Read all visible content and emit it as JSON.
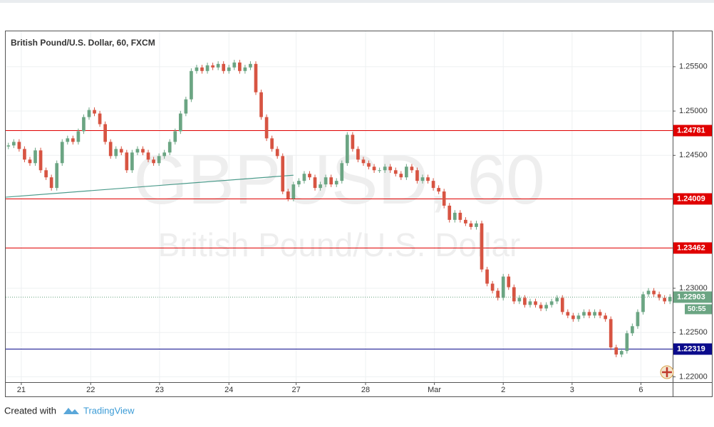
{
  "chart_data": {
    "type": "candlestick",
    "title": "British Pound/U.S. Dollar, 60, FXCM",
    "watermark": "GBPUSD, 60",
    "watermark_subtitle": "British Pound/U.S. Dollar",
    "countdown": "50:55",
    "up_color": "#6ba583",
    "down_color": "#d75442",
    "open": [
      1.246,
      1.24612,
      1.24652,
      1.24572,
      1.24452,
      1.24412,
      1.24556,
      1.24332,
      1.24252,
      1.24132,
      1.24412,
      1.24652,
      1.24692,
      1.24652,
      1.24772,
      1.24932,
      1.25012,
      1.24972,
      1.24852,
      1.24652,
      1.24492,
      1.24572,
      1.24532,
      1.24332,
      1.24532,
      1.24572,
      1.24532,
      1.24452,
      1.24412,
      1.24492,
      1.24532,
      1.24652,
      1.24772,
      1.24972,
      1.25132,
      1.25452,
      1.25492,
      1.25452,
      1.25516,
      1.25492,
      1.25532,
      1.25452,
      1.25492,
      1.25548,
      1.25452,
      1.25492,
      1.25532,
      1.25212,
      1.24932,
      1.24692,
      1.24572,
      1.24492,
      1.24092,
      1.24012,
      1.24172,
      1.24212,
      1.24292,
      1.24252,
      1.24132,
      1.24172,
      1.24252,
      1.24172,
      1.24212,
      1.24412,
      1.24732,
      1.24572,
      1.24452,
      1.24412,
      1.24372,
      1.24332,
      1.24332,
      1.24372,
      1.24332,
      1.24292,
      1.24252,
      1.24372,
      1.24332,
      1.24212,
      1.24252,
      1.24212,
      1.24132,
      1.24092,
      1.23932,
      1.23772,
      1.23852,
      1.23772,
      1.23732,
      1.23692,
      1.23732,
      1.23212,
      1.23052,
      1.22972,
      1.22892,
      1.23132,
      1.23012,
      1.22852,
      1.22892,
      1.22812,
      1.22852,
      1.22812,
      1.22772,
      1.22812,
      1.22852,
      1.22892,
      1.22732,
      1.22692,
      1.22652,
      1.22692,
      1.22732,
      1.22692,
      1.22732,
      1.22692,
      1.22652,
      1.22332,
      1.22252,
      1.22292,
      1.22492,
      1.22572,
      1.22732,
      1.22932,
      1.22972,
      1.22932,
      1.22892,
      1.22852
    ],
    "high": [
      1.24642,
      1.24682,
      1.24682,
      1.24602,
      1.24482,
      1.24586,
      1.24586,
      1.24362,
      1.24282,
      1.24442,
      1.24682,
      1.24722,
      1.24722,
      1.24802,
      1.24962,
      1.25042,
      1.25042,
      1.25002,
      1.24882,
      1.24682,
      1.24602,
      1.24602,
      1.24562,
      1.24562,
      1.24602,
      1.24602,
      1.24562,
      1.24482,
      1.24522,
      1.24562,
      1.24682,
      1.24802,
      1.25002,
      1.25162,
      1.25482,
      1.25522,
      1.25522,
      1.25546,
      1.25546,
      1.25562,
      1.25562,
      1.25522,
      1.25578,
      1.25578,
      1.25522,
      1.25562,
      1.25562,
      1.25242,
      1.24962,
      1.24722,
      1.24602,
      1.24522,
      1.24122,
      1.24202,
      1.24242,
      1.24322,
      1.24322,
      1.24282,
      1.24202,
      1.24282,
      1.24282,
      1.24242,
      1.24442,
      1.24762,
      1.24762,
      1.24602,
      1.24482,
      1.24442,
      1.24402,
      1.24362,
      1.24402,
      1.24402,
      1.24362,
      1.24322,
      1.24402,
      1.24402,
      1.24362,
      1.24282,
      1.24282,
      1.24242,
      1.24162,
      1.24122,
      1.23962,
      1.23882,
      1.23882,
      1.23802,
      1.23762,
      1.23762,
      1.23762,
      1.23242,
      1.23082,
      1.23002,
      1.23162,
      1.23162,
      1.23042,
      1.22922,
      1.22922,
      1.22882,
      1.22882,
      1.22842,
      1.22842,
      1.22882,
      1.22922,
      1.22922,
      1.22762,
      1.22722,
      1.22722,
      1.22762,
      1.22762,
      1.22762,
      1.22762,
      1.22722,
      1.22682,
      1.22362,
      1.22322,
      1.22522,
      1.22602,
      1.22762,
      1.22962,
      1.23002,
      1.23002,
      1.22962,
      1.22922,
      1.22933
    ],
    "low": [
      1.2457,
      1.24582,
      1.24542,
      1.24422,
      1.24382,
      1.24382,
      1.24302,
      1.24222,
      1.24102,
      1.24102,
      1.24382,
      1.24622,
      1.24622,
      1.24622,
      1.24742,
      1.24902,
      1.24942,
      1.24822,
      1.24622,
      1.24462,
      1.24462,
      1.24502,
      1.24302,
      1.24302,
      1.24502,
      1.24502,
      1.24422,
      1.24382,
      1.24382,
      1.24462,
      1.24502,
      1.24622,
      1.24742,
      1.24942,
      1.25102,
      1.25422,
      1.25422,
      1.25422,
      1.25462,
      1.25462,
      1.25422,
      1.25422,
      1.25462,
      1.25422,
      1.25422,
      1.25462,
      1.25182,
      1.24902,
      1.24662,
      1.24542,
      1.24462,
      1.24062,
      1.23982,
      1.23982,
      1.24142,
      1.24182,
      1.24222,
      1.24102,
      1.24102,
      1.24142,
      1.24142,
      1.24142,
      1.24182,
      1.24382,
      1.24542,
      1.24422,
      1.24382,
      1.24342,
      1.24302,
      1.24302,
      1.24302,
      1.24302,
      1.24262,
      1.24222,
      1.24222,
      1.24302,
      1.24182,
      1.24182,
      1.24182,
      1.24102,
      1.24062,
      1.23902,
      1.23742,
      1.23742,
      1.23742,
      1.23702,
      1.23662,
      1.23662,
      1.23182,
      1.23022,
      1.22942,
      1.22862,
      1.22862,
      1.22982,
      1.22822,
      1.22822,
      1.22782,
      1.22782,
      1.22782,
      1.22742,
      1.22742,
      1.22782,
      1.22822,
      1.22702,
      1.22662,
      1.22622,
      1.22622,
      1.22662,
      1.22662,
      1.22662,
      1.22662,
      1.22622,
      1.22302,
      1.22222,
      1.22222,
      1.22262,
      1.22462,
      1.22542,
      1.22702,
      1.22902,
      1.22902,
      1.22862,
      1.22822,
      1.22822
    ],
    "close": [
      1.24612,
      1.24652,
      1.24572,
      1.24452,
      1.24412,
      1.24556,
      1.24332,
      1.24252,
      1.24132,
      1.24412,
      1.24652,
      1.24692,
      1.24652,
      1.24772,
      1.24932,
      1.25012,
      1.24972,
      1.24852,
      1.24652,
      1.24492,
      1.24572,
      1.24532,
      1.24332,
      1.24532,
      1.24572,
      1.24532,
      1.24452,
      1.24412,
      1.24492,
      1.24532,
      1.24652,
      1.24772,
      1.24972,
      1.25132,
      1.25452,
      1.25492,
      1.25452,
      1.25516,
      1.25492,
      1.25532,
      1.25452,
      1.25492,
      1.25548,
      1.25452,
      1.25492,
      1.25532,
      1.25212,
      1.24932,
      1.24692,
      1.24572,
      1.24492,
      1.24092,
      1.24012,
      1.24172,
      1.24212,
      1.24292,
      1.24252,
      1.24132,
      1.24172,
      1.24252,
      1.24172,
      1.24212,
      1.24412,
      1.24732,
      1.24572,
      1.24452,
      1.24412,
      1.24372,
      1.24332,
      1.24332,
      1.24372,
      1.24332,
      1.24292,
      1.24252,
      1.24372,
      1.24332,
      1.24212,
      1.24252,
      1.24212,
      1.24132,
      1.24092,
      1.23932,
      1.23772,
      1.23852,
      1.23772,
      1.23732,
      1.23692,
      1.23732,
      1.23212,
      1.23052,
      1.22972,
      1.22892,
      1.23132,
      1.23012,
      1.22852,
      1.22892,
      1.22812,
      1.22852,
      1.22812,
      1.22772,
      1.22812,
      1.22852,
      1.22892,
      1.22732,
      1.22692,
      1.22652,
      1.22692,
      1.22732,
      1.22692,
      1.22732,
      1.22692,
      1.22652,
      1.22332,
      1.22252,
      1.22292,
      1.22492,
      1.22572,
      1.22732,
      1.22932,
      1.22972,
      1.22932,
      1.22892,
      1.22852,
      1.22903
    ],
    "xlim": [
      -0.5,
      123.5
    ],
    "xticks": [
      {
        "value": 2.4,
        "label": "21"
      },
      {
        "value": 15.3,
        "label": "22"
      },
      {
        "value": 28.1,
        "label": "23"
      },
      {
        "value": 41,
        "label": "24"
      },
      {
        "value": 53.5,
        "label": "27"
      },
      {
        "value": 66.4,
        "label": "28"
      },
      {
        "value": 79.2,
        "label": "Mar"
      },
      {
        "value": 92,
        "label": "2"
      },
      {
        "value": 104.8,
        "label": "3"
      },
      {
        "value": 117.6,
        "label": "6"
      }
    ],
    "ylim": [
      1.2194,
      1.259
    ],
    "yticks": [
      {
        "value": 1.22,
        "label": "1.22000"
      },
      {
        "value": 1.225,
        "label": "1.22500"
      },
      {
        "value": 1.23,
        "label": "1.23000"
      },
      {
        "value": 1.245,
        "label": "1.24500"
      },
      {
        "value": 1.25,
        "label": "1.25000"
      },
      {
        "value": 1.255,
        "label": "1.25500"
      }
    ],
    "grid": true,
    "levels": [
      {
        "value": 1.24781,
        "color": "#e00000"
      },
      {
        "value": 1.24009,
        "color": "#e00000"
      },
      {
        "value": 1.23462,
        "color": "#e00000"
      },
      {
        "value": 1.22319,
        "color": "#0b0b8c"
      }
    ],
    "trendline": {
      "x": [
        -0.5,
        53
      ],
      "values": [
        1.24028,
        1.24276
      ],
      "color": "#4a9a8a"
    }
  },
  "footer": {
    "prefix": "Created with",
    "brand": "TradingView"
  }
}
